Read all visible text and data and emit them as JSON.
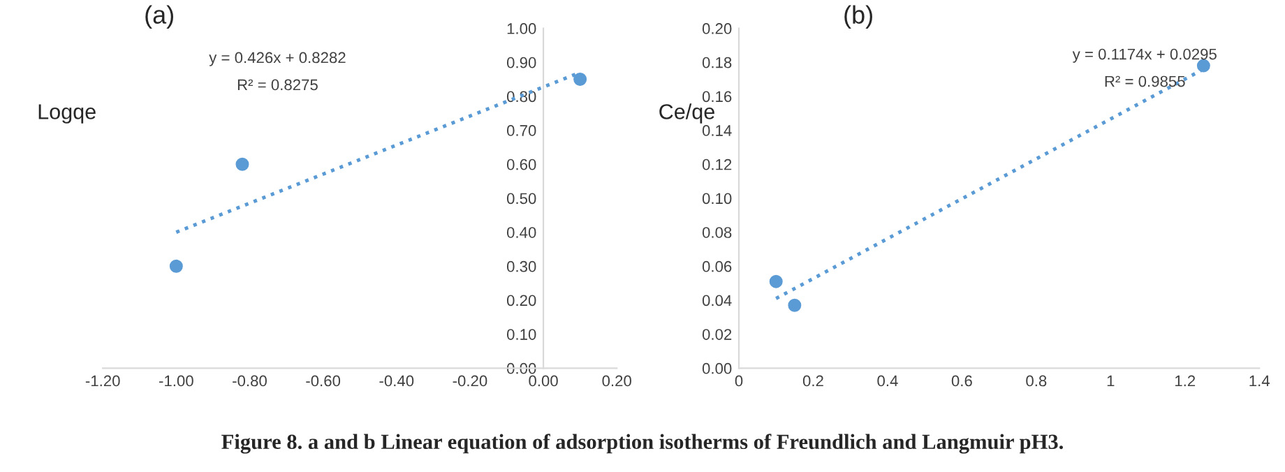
{
  "chart_data": [
    {
      "type": "scatter",
      "title": "(a)",
      "ylabel": "Logqe",
      "marker": "circle",
      "grid": false,
      "xlim": [
        -1.2,
        0.2
      ],
      "ylim": [
        0,
        1.0
      ],
      "xticks": [
        {
          "value": -1.2,
          "label": "-1.20"
        },
        {
          "value": -1.0,
          "label": "-1.00"
        },
        {
          "value": -0.8,
          "label": "-0.80"
        },
        {
          "value": -0.6,
          "label": "-0.60"
        },
        {
          "value": -0.4,
          "label": "-0.40"
        },
        {
          "value": -0.2,
          "label": "-0.20"
        },
        {
          "value": 0,
          "label": "0.00"
        },
        {
          "value": 0.2,
          "label": "0.20"
        }
      ],
      "yticks": [
        {
          "value": 0,
          "label": "0.00"
        },
        {
          "value": 0.1,
          "label": "0.10"
        },
        {
          "value": 0.2,
          "label": "0.20"
        },
        {
          "value": 0.3,
          "label": "0.30"
        },
        {
          "value": 0.4,
          "label": "0.40"
        },
        {
          "value": 0.5,
          "label": "0.50"
        },
        {
          "value": 0.6,
          "label": "0.60"
        },
        {
          "value": 0.7,
          "label": "0.70"
        },
        {
          "value": 0.8,
          "label": "0.80"
        },
        {
          "value": 0.9,
          "label": "0.90"
        },
        {
          "value": 1.0,
          "label": "1.00"
        }
      ],
      "series": [
        {
          "color": "#5b9bd5",
          "x": [
            -1.0,
            -0.82,
            0.1
          ],
          "values": [
            0.3,
            0.6,
            0.85
          ]
        },
        {
          "type": "line",
          "line_style": "dotted",
          "marker": "none",
          "color": "#5b9bd5",
          "x": [
            -1.0,
            0.1
          ],
          "values": [
            0.4,
            0.87
          ]
        }
      ],
      "annotations": [
        "y = 0.426x + 0.8282",
        "R² = 0.8275"
      ]
    },
    {
      "type": "scatter",
      "title": "(b)",
      "ylabel": "Ce/qe",
      "marker": "circle",
      "grid": false,
      "xlim": [
        0,
        1.4
      ],
      "ylim": [
        0,
        0.2
      ],
      "xticks": [
        0,
        0.2,
        0.4,
        0.6,
        0.8,
        1,
        1.2,
        1.4
      ],
      "yticks": [
        {
          "value": 0,
          "label": "0.00"
        },
        {
          "value": 0.02,
          "label": "0.02"
        },
        {
          "value": 0.04,
          "label": "0.04"
        },
        {
          "value": 0.06,
          "label": "0.06"
        },
        {
          "value": 0.08,
          "label": "0.08"
        },
        {
          "value": 0.1,
          "label": "0.10"
        },
        {
          "value": 0.12,
          "label": "0.12"
        },
        {
          "value": 0.14,
          "label": "0.14"
        },
        {
          "value": 0.16,
          "label": "0.16"
        },
        {
          "value": 0.18,
          "label": "0.18"
        },
        {
          "value": 0.2,
          "label": "0.20"
        }
      ],
      "series": [
        {
          "color": "#5b9bd5",
          "x": [
            0.1,
            0.15,
            1.25
          ],
          "values": [
            0.051,
            0.037,
            0.178
          ]
        },
        {
          "type": "line",
          "line_style": "dotted",
          "marker": "none",
          "color": "#5b9bd5",
          "x": [
            0.1,
            1.25
          ],
          "values": [
            0.041,
            0.176
          ]
        }
      ],
      "annotations": [
        "y = 0.1174x + 0.0295",
        "R² = 0.9855",
        "Figure 8. a and b Linear equation of adsorption isotherms of Freundlich and Langmuir pH3."
      ]
    }
  ]
}
